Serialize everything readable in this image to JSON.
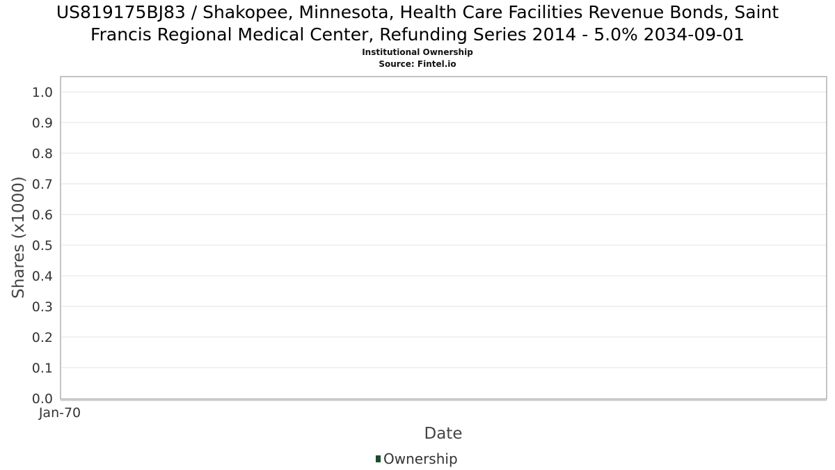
{
  "chart_data": {
    "type": "line",
    "title_line1": "US819175BJ83 / Shakopee, Minnesota, Health Care Facilities Revenue Bonds, Saint",
    "title_line2": "Francis Regional Medical Center, Refunding Series 2014 - 5.0% 2034-09-01",
    "subtitle_line1": "Institutional Ownership",
    "subtitle_line2": "Source: Fintel.io",
    "xlabel": "Date",
    "ylabel": "Shares (x1000)",
    "x_ticks": [
      "Jan-70"
    ],
    "y_ticks": [
      "0.0",
      "0.1",
      "0.2",
      "0.3",
      "0.4",
      "0.5",
      "0.6",
      "0.7",
      "0.8",
      "0.9",
      "1.0"
    ],
    "ylim": [
      0,
      1.0
    ],
    "grid": true,
    "legend_position": "bottom-center",
    "series": [
      {
        "name": "Ownership",
        "color": "#1b4d2b",
        "values": []
      }
    ]
  }
}
